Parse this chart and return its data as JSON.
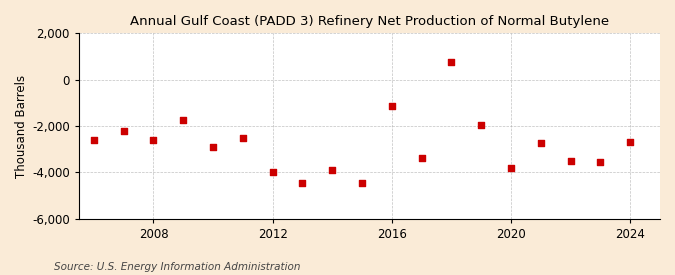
{
  "title": "Annual Gulf Coast (PADD 3) Refinery Net Production of Normal Butylene",
  "ylabel": "Thousand Barrels",
  "source": "Source: U.S. Energy Information Administration",
  "background_color": "#faebd7",
  "plot_background_color": "#ffffff",
  "marker_color": "#cc0000",
  "years": [
    2006,
    2007,
    2008,
    2009,
    2010,
    2011,
    2012,
    2013,
    2014,
    2015,
    2016,
    2017,
    2018,
    2019,
    2020,
    2021,
    2022,
    2023,
    2024
  ],
  "values": [
    -2600,
    -2200,
    -2600,
    -1750,
    -2900,
    -2500,
    -4000,
    -4450,
    -3900,
    -4450,
    -1150,
    -3400,
    750,
    -1950,
    -3800,
    -2750,
    -3500,
    -3550,
    -2700
  ],
  "ylim": [
    -6000,
    2000
  ],
  "yticks": [
    -6000,
    -4000,
    -2000,
    0,
    2000
  ],
  "xlim": [
    2005.5,
    2025
  ],
  "xticks": [
    2008,
    2012,
    2016,
    2020,
    2024
  ],
  "grid_color": "#999999",
  "title_fontsize": 9.5,
  "label_fontsize": 8.5,
  "tick_fontsize": 8.5,
  "source_fontsize": 7.5
}
